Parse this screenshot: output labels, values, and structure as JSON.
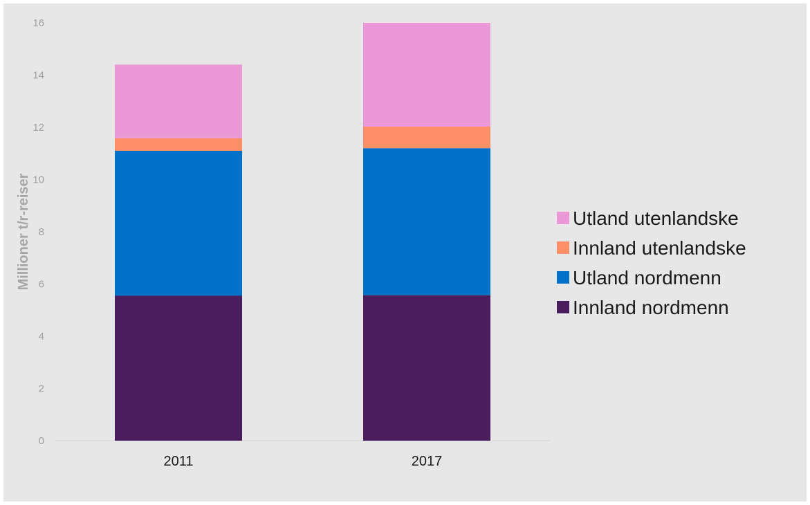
{
  "chart_data": {
    "type": "bar",
    "stacked": true,
    "categories": [
      "2011",
      "2017"
    ],
    "series": [
      {
        "name": "Innland nordmenn",
        "color": "#4a1e5c",
        "values": [
          5.55,
          5.57
        ]
      },
      {
        "name": "Utland nordmenn",
        "color": "#0070c8",
        "values": [
          5.55,
          5.63
        ]
      },
      {
        "name": "Innland utenlandske",
        "color": "#ff8f66",
        "values": [
          0.48,
          0.83
        ]
      },
      {
        "name": "Utland utenlandske",
        "color": "#ea98d6",
        "values": [
          2.82,
          3.97
        ]
      }
    ],
    "title": "",
    "xlabel": "",
    "ylabel": "Millioner t/r-reiser",
    "ylim": [
      0,
      16
    ],
    "yticks": [
      "0",
      "2",
      "4",
      "6",
      "8",
      "10",
      "12",
      "14",
      "16"
    ],
    "grid": false,
    "legend_position": "right",
    "legend_order": [
      "Utland utenlandske",
      "Innland utenlandske",
      "Utland nordmenn",
      "Innland nordmenn"
    ]
  }
}
